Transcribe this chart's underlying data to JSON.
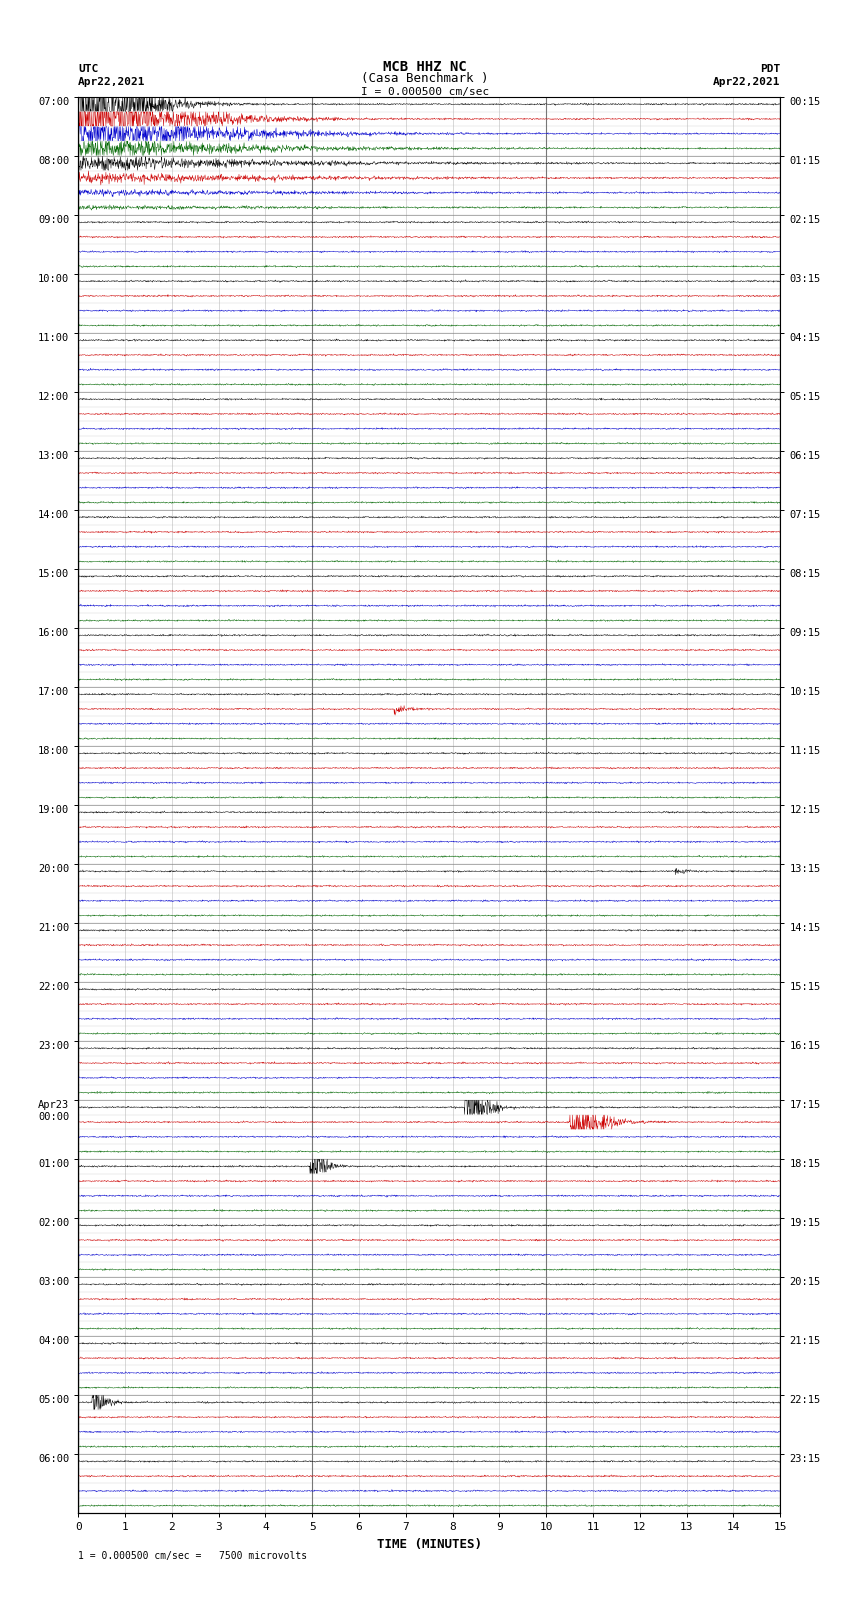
{
  "title_line1": "MCB HHZ NC",
  "title_line2": "(Casa Benchmark )",
  "scale_label": "I = 0.000500 cm/sec",
  "left_header_line1": "UTC",
  "left_header_line2": "Apr22,2021",
  "right_header_line1": "PDT",
  "right_header_line2": "Apr22,2021",
  "bottom_label": "TIME (MINUTES)",
  "bottom_note": "1 = 0.000500 cm/sec =   7500 microvolts",
  "utc_hour_labels": [
    "07:00",
    "08:00",
    "09:00",
    "10:00",
    "11:00",
    "12:00",
    "13:00",
    "14:00",
    "15:00",
    "16:00",
    "17:00",
    "18:00",
    "19:00",
    "20:00",
    "21:00",
    "22:00",
    "23:00",
    "Apr23\n00:00",
    "01:00",
    "02:00",
    "03:00",
    "04:00",
    "05:00",
    "06:00"
  ],
  "pdt_hour_labels": [
    "00:15",
    "01:15",
    "02:15",
    "03:15",
    "04:15",
    "05:15",
    "06:15",
    "07:15",
    "08:15",
    "09:15",
    "10:15",
    "11:15",
    "12:15",
    "13:15",
    "14:15",
    "15:15",
    "16:15",
    "17:15",
    "18:15",
    "19:15",
    "20:15",
    "21:15",
    "22:15",
    "23:15"
  ],
  "num_hours": 24,
  "traces_per_hour": 4,
  "total_minutes": 15,
  "x_ticks": [
    0,
    1,
    2,
    3,
    4,
    5,
    6,
    7,
    8,
    9,
    10,
    11,
    12,
    13,
    14,
    15
  ],
  "bg_color": "#ffffff",
  "trace_colors": [
    "#000000",
    "#cc0000",
    "#0000cc",
    "#006600"
  ],
  "grid_major_color": "#777777",
  "grid_minor_color": "#bbbbbb",
  "base_noise_amp": 0.025,
  "samples_per_row": 1800,
  "fig_width": 8.5,
  "fig_height": 16.13,
  "dpi": 100
}
